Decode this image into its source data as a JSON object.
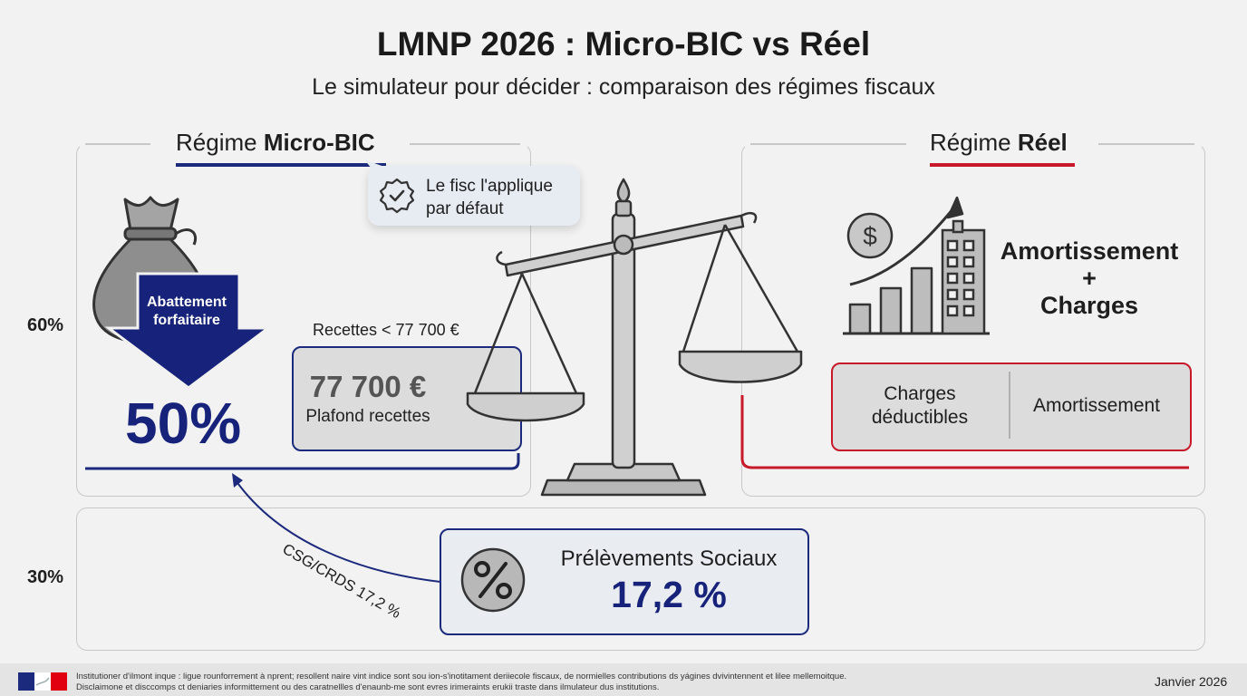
{
  "header": {
    "title": "LMNP 2026 : Micro-BIC vs Réel",
    "subtitle": "Le simulateur pour décider : comparaison des régimes fiscaux"
  },
  "axis": {
    "upper": "60%",
    "lower": "30%"
  },
  "micro_bic": {
    "heading_prefix": "Régime ",
    "heading_bold": "Micro-BIC",
    "callout": "Le fisc l'applique par défaut",
    "abattement_label": "Abattement forfaitaire",
    "abattement_value": "50%",
    "recettes_threshold": "Recettes < 77 700 €",
    "plafond_value": "77 700 €",
    "plafond_label": "Plafond recettes"
  },
  "reel": {
    "heading_prefix": "Régime ",
    "heading_bold": "Réel",
    "headline": "Amortissement + Charges",
    "charges_label": "Charges déductibles",
    "amortissement_label": "Amortissement"
  },
  "social": {
    "connector_label": "CSG/CRDS 17,2 %",
    "title": "Prélèvements Sociaux",
    "value": "17,2 %"
  },
  "footer": {
    "line1": "Institutioner d'ilmont inque : ligue rounforrement à nprent; resollent naire vint indice sont sou ion-s'inotitament deriiecole fiscaux, de normielles contributions ds yágines dvivintennent et lilee mellemoitque.",
    "line2": "Disclaimone et disccomps ct deniaries informittement ou des caratnellles d'enaunb-me sont evres irimeraints erukii traste dans ilmulateur dus institutions.",
    "date": "Janvier 2026"
  },
  "icons": {
    "check": "check-badge-icon",
    "money_bag": "money-bag-icon",
    "arrow": "down-arrow-icon",
    "scale": "balance-scale-icon",
    "growth": "growth-chart-icon",
    "building": "building-icon",
    "percent": "percent-icon",
    "flag": "french-flag-logo"
  },
  "colors": {
    "navy": "#1c2a7d",
    "red": "#c8192a",
    "grey": "#8a8a8a"
  }
}
